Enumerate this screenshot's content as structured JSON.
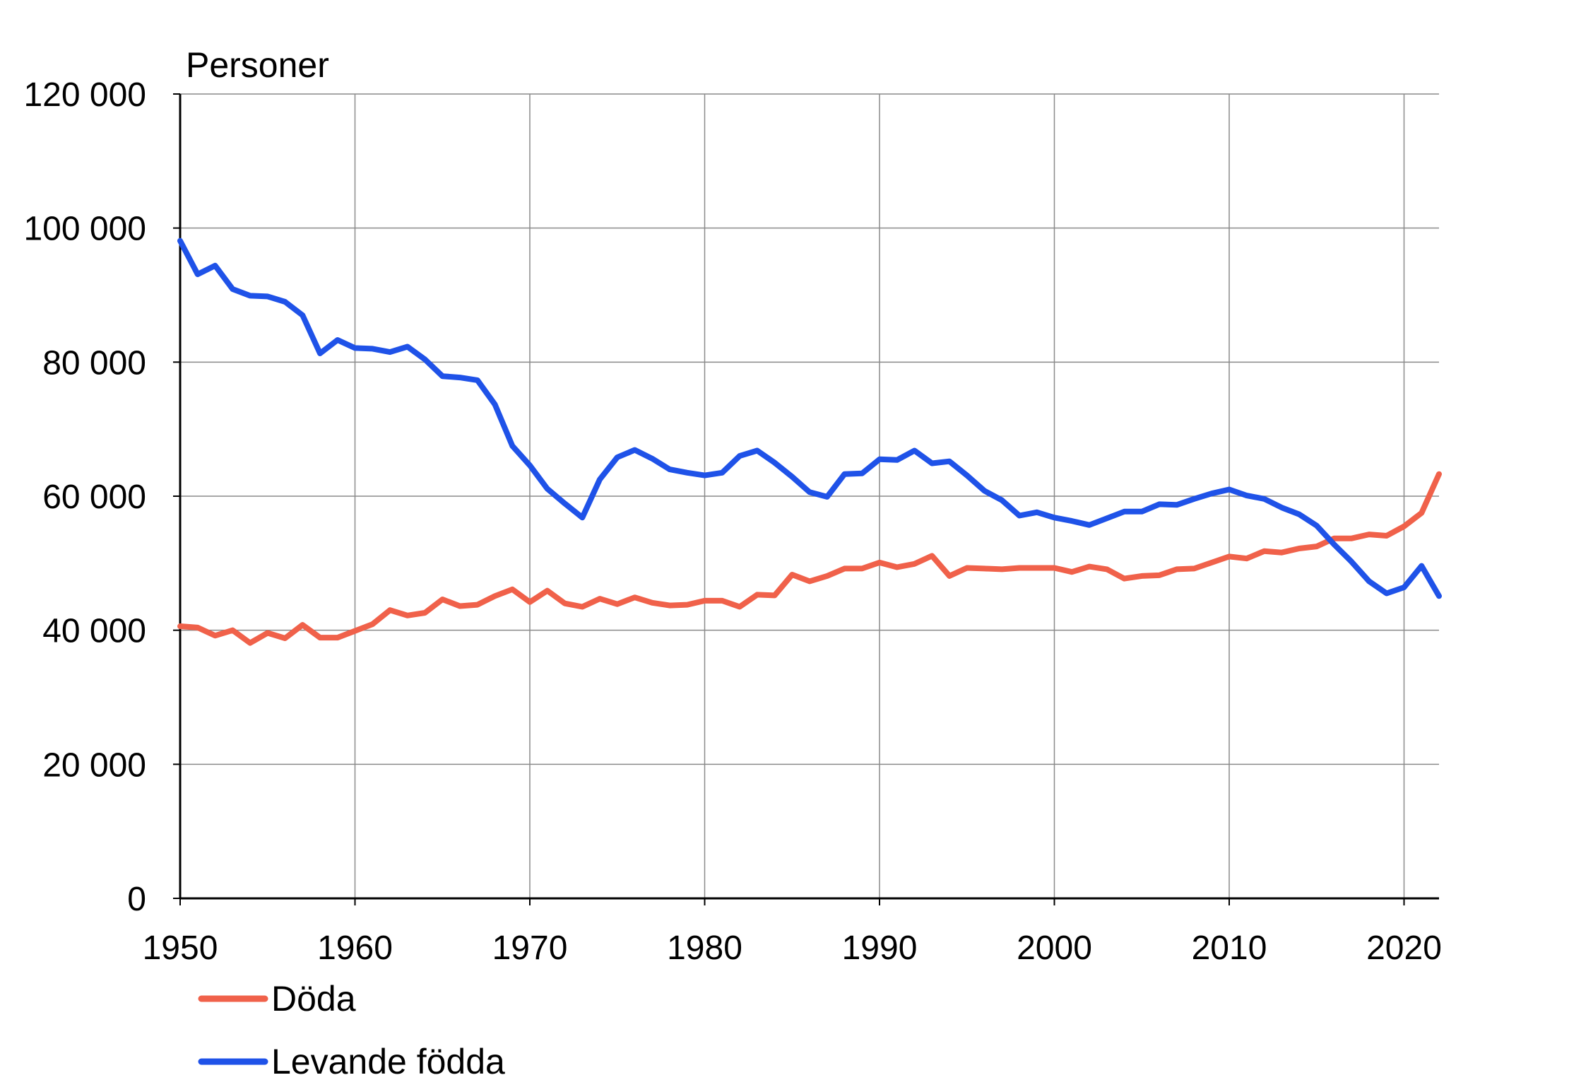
{
  "chart_data": {
    "type": "line",
    "ylabel": "Personer",
    "xlim": [
      1950,
      2022
    ],
    "ylim": [
      0,
      120000
    ],
    "xticks": [
      1950,
      1960,
      1970,
      1980,
      1990,
      2000,
      2010,
      2020
    ],
    "yticks": [
      0,
      20000,
      40000,
      60000,
      80000,
      100000,
      120000
    ],
    "xtick_labels": [
      "1950",
      "1960",
      "1970",
      "1980",
      "1990",
      "2000",
      "2010",
      "2020"
    ],
    "ytick_labels": [
      "0",
      "20 000",
      "40 000",
      "60 000",
      "80 000",
      "100 000",
      "120 000"
    ],
    "grid": true,
    "legend_position": "bottom-left",
    "series": [
      {
        "name": "Döda",
        "color": "#f0614a",
        "x": [
          1950,
          1951,
          1952,
          1953,
          1954,
          1955,
          1956,
          1957,
          1958,
          1959,
          1960,
          1961,
          1962,
          1963,
          1964,
          1965,
          1966,
          1967,
          1968,
          1969,
          1970,
          1971,
          1972,
          1973,
          1974,
          1975,
          1976,
          1977,
          1978,
          1979,
          1980,
          1981,
          1982,
          1983,
          1984,
          1985,
          1986,
          1987,
          1988,
          1989,
          1990,
          1991,
          1992,
          1993,
          1994,
          1995,
          1996,
          1997,
          1998,
          1999,
          2000,
          2001,
          2002,
          2003,
          2004,
          2005,
          2006,
          2007,
          2008,
          2009,
          2010,
          2011,
          2012,
          2013,
          2014,
          2015,
          2016,
          2017,
          2018,
          2019,
          2020,
          2021,
          2022
        ],
        "values": [
          40600,
          40400,
          39200,
          40000,
          38100,
          39600,
          38800,
          40800,
          38900,
          38900,
          39900,
          40900,
          43000,
          42200,
          42600,
          44600,
          43600,
          43800,
          45100,
          46100,
          44200,
          45900,
          44000,
          43500,
          44700,
          43900,
          44900,
          44100,
          43700,
          43800,
          44400,
          44400,
          43500,
          45300,
          45200,
          48300,
          47300,
          48100,
          49200,
          49200,
          50100,
          49400,
          49900,
          51100,
          48100,
          49300,
          49200,
          49100,
          49300,
          49300,
          49300,
          48700,
          49500,
          49100,
          47700,
          48100,
          48200,
          49100,
          49200,
          50100,
          51000,
          50700,
          51800,
          51600,
          52200,
          52500,
          53700,
          53700,
          54300,
          54100,
          55500,
          57500,
          63300
        ]
      },
      {
        "name": "Levande födda",
        "color": "#1f52e8",
        "x": [
          1950,
          1951,
          1952,
          1953,
          1954,
          1955,
          1956,
          1957,
          1958,
          1959,
          1960,
          1961,
          1962,
          1963,
          1964,
          1965,
          1966,
          1967,
          1968,
          1969,
          1970,
          1971,
          1972,
          1973,
          1974,
          1975,
          1976,
          1977,
          1978,
          1979,
          1980,
          1981,
          1982,
          1983,
          1984,
          1985,
          1986,
          1987,
          1988,
          1989,
          1990,
          1991,
          1992,
          1993,
          1994,
          1995,
          1996,
          1997,
          1998,
          1999,
          2000,
          2001,
          2002,
          2003,
          2004,
          2005,
          2006,
          2007,
          2008,
          2009,
          2010,
          2011,
          2012,
          2013,
          2014,
          2015,
          2016,
          2017,
          2018,
          2019,
          2020,
          2021,
          2022
        ],
        "values": [
          98100,
          93100,
          94400,
          90900,
          89900,
          89800,
          89000,
          87000,
          81300,
          83300,
          82100,
          82000,
          81500,
          82300,
          80400,
          77900,
          77700,
          77300,
          73700,
          67500,
          64600,
          61100,
          58900,
          56800,
          62500,
          65800,
          66900,
          65600,
          64000,
          63500,
          63100,
          63500,
          66000,
          66800,
          65000,
          62900,
          60600,
          59900,
          63300,
          63400,
          65500,
          65400,
          66800,
          64900,
          65200,
          63100,
          60800,
          59400,
          57100,
          57600,
          56800,
          56300,
          55700,
          56700,
          57700,
          57700,
          58800,
          58700,
          59600,
          60400,
          61000,
          60100,
          59600,
          58300,
          57300,
          55600,
          52800,
          50200,
          47300,
          45500,
          46400,
          49600,
          45100
        ]
      }
    ]
  }
}
